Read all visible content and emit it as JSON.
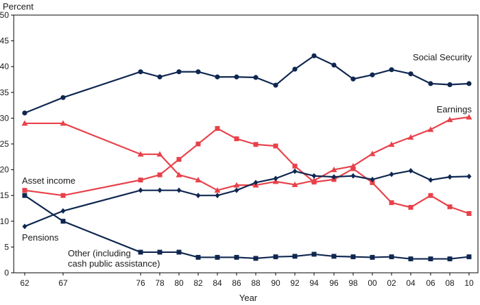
{
  "chart_data": {
    "type": "line",
    "ylabel": "Percent",
    "xlabel": "Year",
    "ylim": [
      0,
      50
    ],
    "yticks": [
      0,
      5,
      10,
      15,
      20,
      25,
      30,
      35,
      40,
      45,
      50
    ],
    "x": [
      1962,
      1967,
      1976,
      1978,
      1980,
      1982,
      1984,
      1986,
      1988,
      1990,
      1992,
      1994,
      1996,
      1998,
      2000,
      2002,
      2004,
      2006,
      2008,
      2010
    ],
    "xtick_labels": [
      "62",
      "67",
      "76",
      "78",
      "80",
      "82",
      "84",
      "86",
      "88",
      "90",
      "92",
      "94",
      "96",
      "98",
      "00",
      "02",
      "04",
      "06",
      "08",
      "10"
    ],
    "grid": false,
    "series": [
      {
        "name": "Social Security",
        "color": "#0f2750",
        "marker": "circle",
        "values": [
          31,
          34,
          39,
          38,
          39,
          39,
          38,
          38,
          37.9,
          36.4,
          39.5,
          42.1,
          40.3,
          37.6,
          38.4,
          39.4,
          38.6,
          36.7,
          36.5,
          36.7
        ]
      },
      {
        "name": "Earnings",
        "color": "#e8414a",
        "marker": "triangle",
        "values": [
          29,
          29,
          23,
          23,
          19,
          18,
          16,
          17,
          17,
          17.7,
          17.1,
          17.9,
          20,
          20.7,
          23.1,
          24.9,
          26.3,
          27.8,
          29.7,
          30.2
        ]
      },
      {
        "name": "Asset income",
        "color": "#e8414a",
        "marker": "square",
        "values": [
          16,
          15,
          18,
          19,
          22,
          25,
          28,
          26,
          24.9,
          24.6,
          20.7,
          17.6,
          18.1,
          20.2,
          17.5,
          13.6,
          12.7,
          15,
          12.8,
          11.5
        ]
      },
      {
        "name": "Pensions",
        "color": "#0f2750",
        "marker": "diamond",
        "values": [
          9,
          12,
          16,
          16,
          16,
          15,
          15,
          16,
          17.5,
          18.3,
          19.7,
          18.8,
          18.6,
          18.8,
          18.1,
          19.1,
          19.8,
          18,
          18.6,
          18.7
        ]
      },
      {
        "name": "Other (including cash public assistance)",
        "label_lines": [
          "Other (including",
          "cash public assistance)"
        ],
        "color": "#0f2750",
        "marker": "square",
        "values": [
          15,
          10,
          4,
          4,
          4,
          3,
          3,
          3,
          2.8,
          3.1,
          3.2,
          3.6,
          3.2,
          3.1,
          3,
          3.1,
          2.7,
          2.7,
          2.7,
          3.1
        ]
      }
    ]
  }
}
